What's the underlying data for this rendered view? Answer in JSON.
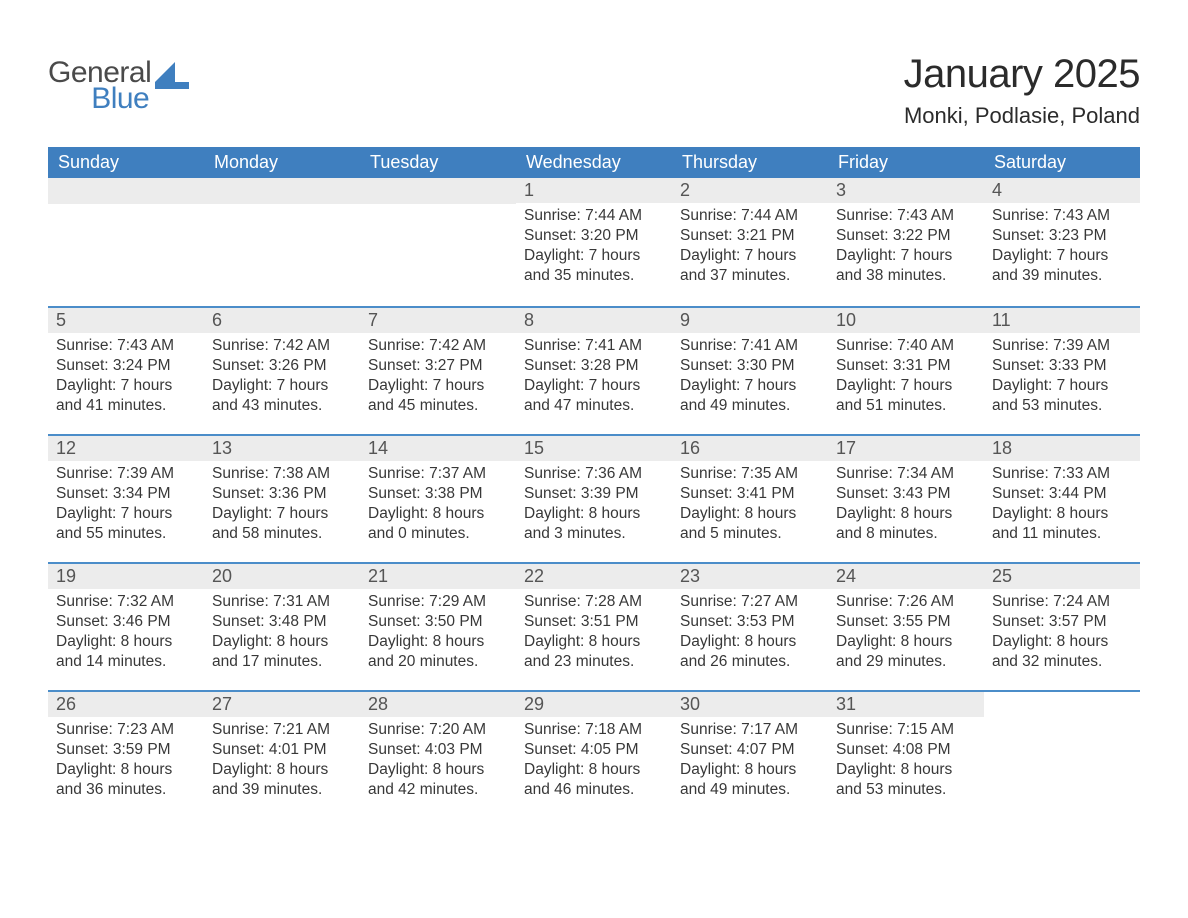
{
  "brand": {
    "line1": "General",
    "line2": "Blue"
  },
  "title": "January 2025",
  "location": "Monki, Podlasie, Poland",
  "colors": {
    "header_bg": "#3f7fbf",
    "header_text": "#ffffff",
    "daynum_bg": "#ececec",
    "row_separator": "#4b8dc9",
    "body_text": "#383838",
    "page_bg": "#ffffff"
  },
  "columns": [
    "Sunday",
    "Monday",
    "Tuesday",
    "Wednesday",
    "Thursday",
    "Friday",
    "Saturday"
  ],
  "labels": {
    "sunrise": "Sunrise",
    "sunset": "Sunset",
    "daylight": "Daylight"
  },
  "weeks": [
    [
      null,
      null,
      null,
      {
        "n": "1",
        "sunrise": "7:44 AM",
        "sunset": "3:20 PM",
        "dl_h": "7",
        "dl_m": "35"
      },
      {
        "n": "2",
        "sunrise": "7:44 AM",
        "sunset": "3:21 PM",
        "dl_h": "7",
        "dl_m": "37"
      },
      {
        "n": "3",
        "sunrise": "7:43 AM",
        "sunset": "3:22 PM",
        "dl_h": "7",
        "dl_m": "38"
      },
      {
        "n": "4",
        "sunrise": "7:43 AM",
        "sunset": "3:23 PM",
        "dl_h": "7",
        "dl_m": "39"
      }
    ],
    [
      {
        "n": "5",
        "sunrise": "7:43 AM",
        "sunset": "3:24 PM",
        "dl_h": "7",
        "dl_m": "41"
      },
      {
        "n": "6",
        "sunrise": "7:42 AM",
        "sunset": "3:26 PM",
        "dl_h": "7",
        "dl_m": "43"
      },
      {
        "n": "7",
        "sunrise": "7:42 AM",
        "sunset": "3:27 PM",
        "dl_h": "7",
        "dl_m": "45"
      },
      {
        "n": "8",
        "sunrise": "7:41 AM",
        "sunset": "3:28 PM",
        "dl_h": "7",
        "dl_m": "47"
      },
      {
        "n": "9",
        "sunrise": "7:41 AM",
        "sunset": "3:30 PM",
        "dl_h": "7",
        "dl_m": "49"
      },
      {
        "n": "10",
        "sunrise": "7:40 AM",
        "sunset": "3:31 PM",
        "dl_h": "7",
        "dl_m": "51"
      },
      {
        "n": "11",
        "sunrise": "7:39 AM",
        "sunset": "3:33 PM",
        "dl_h": "7",
        "dl_m": "53"
      }
    ],
    [
      {
        "n": "12",
        "sunrise": "7:39 AM",
        "sunset": "3:34 PM",
        "dl_h": "7",
        "dl_m": "55"
      },
      {
        "n": "13",
        "sunrise": "7:38 AM",
        "sunset": "3:36 PM",
        "dl_h": "7",
        "dl_m": "58"
      },
      {
        "n": "14",
        "sunrise": "7:37 AM",
        "sunset": "3:38 PM",
        "dl_h": "8",
        "dl_m": "0"
      },
      {
        "n": "15",
        "sunrise": "7:36 AM",
        "sunset": "3:39 PM",
        "dl_h": "8",
        "dl_m": "3"
      },
      {
        "n": "16",
        "sunrise": "7:35 AM",
        "sunset": "3:41 PM",
        "dl_h": "8",
        "dl_m": "5"
      },
      {
        "n": "17",
        "sunrise": "7:34 AM",
        "sunset": "3:43 PM",
        "dl_h": "8",
        "dl_m": "8"
      },
      {
        "n": "18",
        "sunrise": "7:33 AM",
        "sunset": "3:44 PM",
        "dl_h": "8",
        "dl_m": "11"
      }
    ],
    [
      {
        "n": "19",
        "sunrise": "7:32 AM",
        "sunset": "3:46 PM",
        "dl_h": "8",
        "dl_m": "14"
      },
      {
        "n": "20",
        "sunrise": "7:31 AM",
        "sunset": "3:48 PM",
        "dl_h": "8",
        "dl_m": "17"
      },
      {
        "n": "21",
        "sunrise": "7:29 AM",
        "sunset": "3:50 PM",
        "dl_h": "8",
        "dl_m": "20"
      },
      {
        "n": "22",
        "sunrise": "7:28 AM",
        "sunset": "3:51 PM",
        "dl_h": "8",
        "dl_m": "23"
      },
      {
        "n": "23",
        "sunrise": "7:27 AM",
        "sunset": "3:53 PM",
        "dl_h": "8",
        "dl_m": "26"
      },
      {
        "n": "24",
        "sunrise": "7:26 AM",
        "sunset": "3:55 PM",
        "dl_h": "8",
        "dl_m": "29"
      },
      {
        "n": "25",
        "sunrise": "7:24 AM",
        "sunset": "3:57 PM",
        "dl_h": "8",
        "dl_m": "32"
      }
    ],
    [
      {
        "n": "26",
        "sunrise": "7:23 AM",
        "sunset": "3:59 PM",
        "dl_h": "8",
        "dl_m": "36"
      },
      {
        "n": "27",
        "sunrise": "7:21 AM",
        "sunset": "4:01 PM",
        "dl_h": "8",
        "dl_m": "39"
      },
      {
        "n": "28",
        "sunrise": "7:20 AM",
        "sunset": "4:03 PM",
        "dl_h": "8",
        "dl_m": "42"
      },
      {
        "n": "29",
        "sunrise": "7:18 AM",
        "sunset": "4:05 PM",
        "dl_h": "8",
        "dl_m": "46"
      },
      {
        "n": "30",
        "sunrise": "7:17 AM",
        "sunset": "4:07 PM",
        "dl_h": "8",
        "dl_m": "49"
      },
      {
        "n": "31",
        "sunrise": "7:15 AM",
        "sunset": "4:08 PM",
        "dl_h": "8",
        "dl_m": "53"
      },
      null
    ]
  ]
}
